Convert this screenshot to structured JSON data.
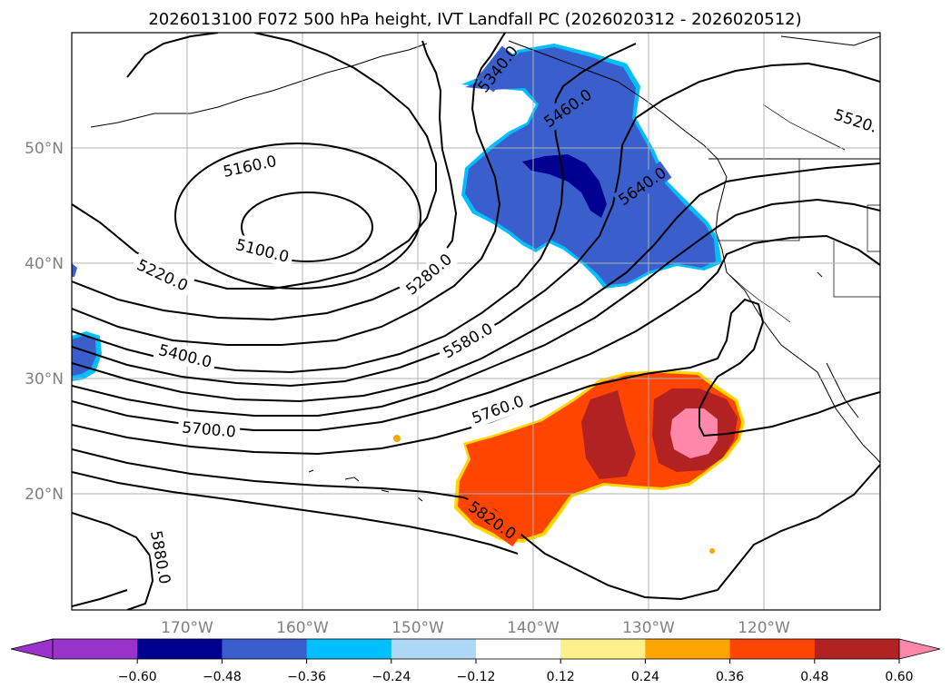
{
  "title": "2026013100 F072 500 hPa height, IVT Landfall PC (2026020312 - 2026020512)",
  "lat_labels": [
    "50°N",
    "40°N",
    "30°N",
    "20°N"
  ],
  "lon_labels": [
    "170°W",
    "160°W",
    "150°W",
    "140°W",
    "130°W",
    "120°W"
  ],
  "contour_labels": [
    "5340.0",
    "5460.0",
    "5520.",
    "5160.0",
    "5100.0",
    "5640.0",
    "5220.0",
    "5280.0",
    "5580.0",
    "5400.0",
    "5760.0",
    "5700.0",
    "5820.0",
    "5880.0"
  ],
  "colorbar": {
    "ticks": [
      "−0.60",
      "−0.48",
      "−0.36",
      "−0.24",
      "−0.12",
      "0.12",
      "0.24",
      "0.36",
      "0.48",
      "0.60"
    ],
    "colors": [
      "#9933cc",
      "#000090",
      "#3a5fcd",
      "#00bfff",
      "#add8f6",
      "#ffffff",
      "#fff08c",
      "#ffa500",
      "#ff4500",
      "#b22222",
      "#ff88aa",
      "#ff88aa"
    ]
  },
  "colors": {
    "grid": "#b0b0b0",
    "axis_labels": "#808080",
    "contour": "#000000"
  }
}
